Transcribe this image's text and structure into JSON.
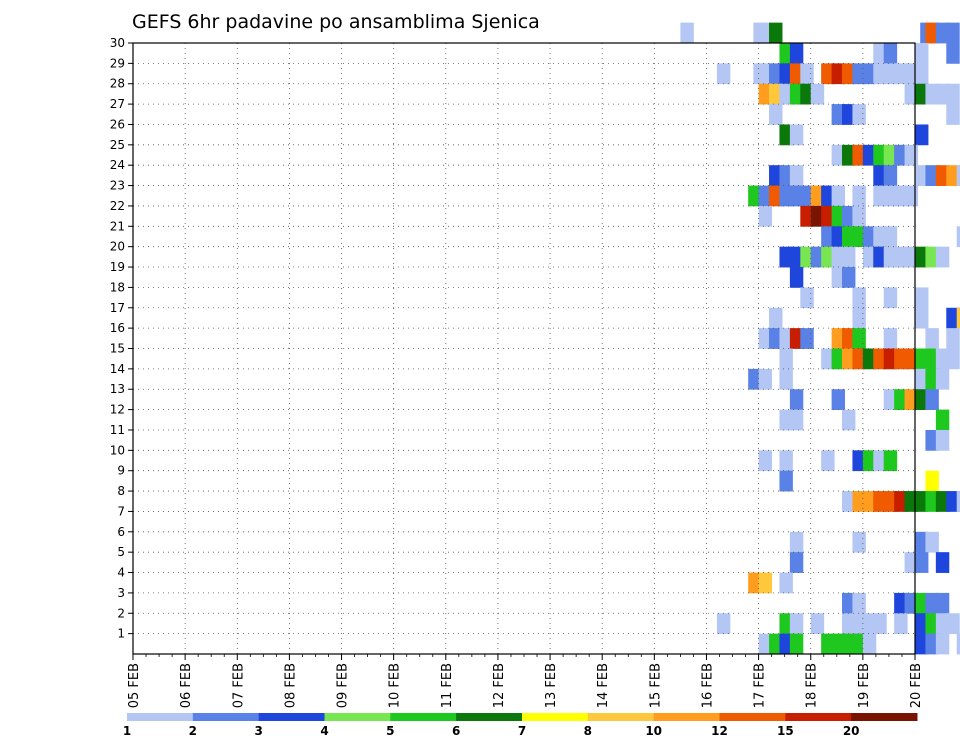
{
  "chart_data": {
    "type": "heatmap",
    "title": "GEFS 6hr padavine po ansamblima Sjenica",
    "xlabel": "",
    "ylabel": "",
    "x_ticks": [
      "05 FEB",
      "06 FEB",
      "07 FEB",
      "08 FEB",
      "09 FEB",
      "10 FEB",
      "11 FEB",
      "12 FEB",
      "13 FEB",
      "14 FEB",
      "15 FEB",
      "16 FEB",
      "17 FEB",
      "18 FEB",
      "19 FEB",
      "20 FEB"
    ],
    "y_ticks": [
      "1",
      "2",
      "3",
      "4",
      "5",
      "6",
      "7",
      "8",
      "9",
      "10",
      "11",
      "12",
      "13",
      "14",
      "15",
      "16",
      "17",
      "18",
      "19",
      "20",
      "21",
      "22",
      "23",
      "24",
      "25",
      "26",
      "27",
      "28",
      "29",
      "30"
    ],
    "ylim": [
      0,
      30
    ],
    "x_range_days": [
      0,
      15
    ],
    "grid": true,
    "color_scale": {
      "levels": [
        "1",
        "2",
        "3",
        "4",
        "5",
        "6",
        "7",
        "8",
        "10",
        "12",
        "15",
        "20"
      ],
      "colors": [
        "#b4c6f4",
        "#5a82e6",
        "#1e46dc",
        "#78e650",
        "#1ec81e",
        "#0a780a",
        "#ffff00",
        "#ffc83c",
        "#ff9e1e",
        "#f05a00",
        "#c81e00",
        "#781400"
      ]
    },
    "cells": [
      [
        30,
        15.5,
        1
      ],
      [
        30,
        16.9,
        1
      ],
      [
        30,
        17,
        1
      ],
      [
        30,
        17.2,
        6
      ],
      [
        30,
        20.1,
        2
      ],
      [
        30,
        20.2,
        10
      ],
      [
        30,
        20.4,
        2
      ],
      [
        30,
        20.6,
        2
      ],
      [
        29,
        17.4,
        5
      ],
      [
        29,
        17.6,
        3
      ],
      [
        29,
        19.2,
        1
      ],
      [
        29,
        19.4,
        2
      ],
      [
        29,
        20.0,
        1
      ],
      [
        29,
        20.6,
        2
      ],
      [
        28,
        16.2,
        1
      ],
      [
        28,
        16.9,
        1
      ],
      [
        28,
        17,
        1
      ],
      [
        28,
        17.2,
        2
      ],
      [
        28,
        17.4,
        3
      ],
      [
        28,
        17.6,
        10
      ],
      [
        28,
        17.8,
        1
      ],
      [
        28,
        18.2,
        10
      ],
      [
        28,
        18.4,
        11
      ],
      [
        28,
        18.6,
        10
      ],
      [
        28,
        18.8,
        2
      ],
      [
        28,
        19,
        2
      ],
      [
        28,
        19.2,
        1
      ],
      [
        28,
        19.4,
        1
      ],
      [
        28,
        19.6,
        1
      ],
      [
        28,
        19.8,
        1
      ],
      [
        28,
        20.0,
        1
      ],
      [
        27,
        17,
        9
      ],
      [
        27,
        17.2,
        8
      ],
      [
        27,
        17.4,
        1
      ],
      [
        27,
        17.6,
        5
      ],
      [
        27,
        17.8,
        6
      ],
      [
        27,
        18,
        1
      ],
      [
        27,
        19.8,
        1
      ],
      [
        27,
        20.0,
        6
      ],
      [
        27,
        20.2,
        1
      ],
      [
        27,
        20.4,
        1
      ],
      [
        27,
        20.6,
        1
      ],
      [
        26,
        17.2,
        1
      ],
      [
        26,
        18.4,
        2
      ],
      [
        26,
        18.6,
        3
      ],
      [
        26,
        18.8,
        1
      ],
      [
        26,
        20.6,
        1
      ],
      [
        26,
        21.4,
        2
      ],
      [
        26,
        21.6,
        2
      ],
      [
        26,
        21.8,
        8
      ],
      [
        25,
        17.4,
        6
      ],
      [
        25,
        17.6,
        1
      ],
      [
        25,
        20.0,
        3
      ],
      [
        25,
        21.6,
        1
      ],
      [
        24,
        18.4,
        1
      ],
      [
        24,
        18.6,
        6
      ],
      [
        24,
        18.8,
        10
      ],
      [
        24,
        19.0,
        3
      ],
      [
        24,
        19.2,
        5
      ],
      [
        24,
        19.4,
        4
      ],
      [
        24,
        19.6,
        2
      ],
      [
        24,
        19.8,
        1
      ],
      [
        23,
        17.2,
        3
      ],
      [
        23,
        17.4,
        2
      ],
      [
        23,
        17.6,
        1
      ],
      [
        23,
        19.2,
        3
      ],
      [
        23,
        19.4,
        2
      ],
      [
        23,
        20.0,
        1
      ],
      [
        23,
        20.2,
        2
      ],
      [
        23,
        20.4,
        10
      ],
      [
        23,
        20.6,
        9
      ],
      [
        23,
        20.8,
        1
      ],
      [
        22,
        16.8,
        5
      ],
      [
        22,
        17,
        2
      ],
      [
        22,
        17.2,
        10
      ],
      [
        22,
        17.4,
        2
      ],
      [
        22,
        17.6,
        2
      ],
      [
        22,
        17.8,
        2
      ],
      [
        22,
        18,
        9
      ],
      [
        22,
        18.2,
        3
      ],
      [
        22,
        18.4,
        1
      ],
      [
        22,
        18.8,
        1
      ],
      [
        22,
        19.2,
        1
      ],
      [
        22,
        19.4,
        1
      ],
      [
        22,
        19.6,
        1
      ],
      [
        22,
        19.8,
        1
      ],
      [
        21,
        17,
        1
      ],
      [
        21,
        17.8,
        11
      ],
      [
        21,
        18,
        12
      ],
      [
        21,
        18.2,
        11
      ],
      [
        21,
        18.4,
        5
      ],
      [
        21,
        18.6,
        2
      ],
      [
        21,
        18.8,
        1
      ],
      [
        21,
        21.0,
        1
      ],
      [
        21,
        21.2,
        2
      ],
      [
        20,
        18.2,
        2
      ],
      [
        20,
        18.4,
        3
      ],
      [
        20,
        18.6,
        5
      ],
      [
        20,
        18.8,
        5
      ],
      [
        20,
        19.0,
        2
      ],
      [
        20,
        19.2,
        1
      ],
      [
        20,
        19.4,
        1
      ],
      [
        20,
        20.8,
        1
      ],
      [
        19,
        17.4,
        3
      ],
      [
        19,
        17.6,
        3
      ],
      [
        19,
        17.8,
        4
      ],
      [
        19,
        18.0,
        2
      ],
      [
        19,
        18.2,
        4
      ],
      [
        19,
        18.4,
        1
      ],
      [
        19,
        18.6,
        1
      ],
      [
        19,
        19.0,
        1
      ],
      [
        19,
        19.2,
        3
      ],
      [
        19,
        19.4,
        1
      ],
      [
        19,
        19.6,
        1
      ],
      [
        19,
        19.8,
        1
      ],
      [
        19,
        20.0,
        6
      ],
      [
        19,
        20.2,
        4
      ],
      [
        19,
        20.4,
        1
      ],
      [
        19,
        21.0,
        1
      ],
      [
        18,
        17.6,
        3
      ],
      [
        18,
        18.4,
        1
      ],
      [
        18,
        18.6,
        2
      ],
      [
        17,
        17.8,
        1
      ],
      [
        17,
        18.8,
        1
      ],
      [
        17,
        19.4,
        1
      ],
      [
        17,
        20.0,
        1
      ],
      [
        16,
        17.2,
        1
      ],
      [
        16,
        18.8,
        1
      ],
      [
        16,
        20.0,
        1
      ],
      [
        16,
        20.6,
        3
      ],
      [
        16,
        20.8,
        8
      ],
      [
        16,
        21.0,
        6
      ],
      [
        16,
        21.2,
        1
      ],
      [
        16,
        21.6,
        1
      ],
      [
        15,
        17,
        1
      ],
      [
        15,
        17.2,
        2
      ],
      [
        15,
        17.4,
        1
      ],
      [
        15,
        17.6,
        11
      ],
      [
        15,
        17.8,
        2
      ],
      [
        15,
        18.4,
        9
      ],
      [
        15,
        18.6,
        10
      ],
      [
        15,
        18.8,
        5
      ],
      [
        15,
        19.4,
        1
      ],
      [
        15,
        20.2,
        1
      ],
      [
        15,
        20.6,
        1
      ],
      [
        15,
        21.6,
        1
      ],
      [
        15,
        21.8,
        2
      ],
      [
        14,
        17.4,
        1
      ],
      [
        14,
        18.2,
        1
      ],
      [
        14,
        18.4,
        5
      ],
      [
        14,
        18.6,
        9
      ],
      [
        14,
        18.8,
        10
      ],
      [
        14,
        19.0,
        6
      ],
      [
        14,
        19.2,
        10
      ],
      [
        14,
        19.4,
        11
      ],
      [
        14,
        19.6,
        10
      ],
      [
        14,
        19.8,
        10
      ],
      [
        14,
        20.0,
        5
      ],
      [
        14,
        20.2,
        5
      ],
      [
        14,
        20.4,
        1
      ],
      [
        14,
        20.6,
        1
      ],
      [
        14,
        21.8,
        5
      ],
      [
        14,
        22.0,
        5
      ],
      [
        13,
        16.8,
        2
      ],
      [
        13,
        17,
        1
      ],
      [
        13,
        17.4,
        1
      ],
      [
        13,
        20.0,
        1
      ],
      [
        13,
        20.2,
        5
      ],
      [
        13,
        20.4,
        1
      ],
      [
        12,
        17.6,
        2
      ],
      [
        12,
        18.4,
        2
      ],
      [
        12,
        19.4,
        1
      ],
      [
        12,
        19.6,
        5
      ],
      [
        12,
        19.8,
        9
      ],
      [
        12,
        20.0,
        6
      ],
      [
        12,
        20.2,
        2
      ],
      [
        11,
        17.4,
        1
      ],
      [
        11,
        17.6,
        1
      ],
      [
        11,
        18.6,
        1
      ],
      [
        11,
        20.4,
        5
      ],
      [
        10,
        20.2,
        2
      ],
      [
        10,
        20.4,
        1
      ],
      [
        9,
        17,
        1
      ],
      [
        9,
        17.4,
        1
      ],
      [
        9,
        18.2,
        1
      ],
      [
        9,
        18.8,
        3
      ],
      [
        9,
        19.0,
        5
      ],
      [
        9,
        19.2,
        1
      ],
      [
        9,
        19.4,
        5
      ],
      [
        9,
        21.8,
        9
      ],
      [
        8,
        17.4,
        2
      ],
      [
        8,
        20.2,
        7
      ],
      [
        8,
        21.8,
        2
      ],
      [
        7,
        18.6,
        1
      ],
      [
        7,
        18.8,
        9
      ],
      [
        7,
        19.0,
        9
      ],
      [
        7,
        19.2,
        10
      ],
      [
        7,
        19.4,
        10
      ],
      [
        7,
        19.6,
        11
      ],
      [
        7,
        19.8,
        6
      ],
      [
        7,
        20.0,
        6
      ],
      [
        7,
        20.2,
        5
      ],
      [
        7,
        20.4,
        6
      ],
      [
        7,
        20.6,
        3
      ],
      [
        7,
        20.8,
        1
      ],
      [
        7,
        21.0,
        5
      ],
      [
        7,
        21.2,
        3
      ],
      [
        7,
        21.4,
        1
      ],
      [
        5,
        17.6,
        1
      ],
      [
        5,
        18.8,
        1
      ],
      [
        5,
        20.0,
        2
      ],
      [
        5,
        20.2,
        1
      ],
      [
        4,
        17.6,
        2
      ],
      [
        4,
        19.8,
        1
      ],
      [
        4,
        20.0,
        2
      ],
      [
        4,
        20.4,
        3
      ],
      [
        3,
        16.8,
        9
      ],
      [
        3,
        17,
        8
      ],
      [
        3,
        17.4,
        1
      ],
      [
        2,
        18.6,
        2
      ],
      [
        2,
        18.8,
        1
      ],
      [
        2,
        19.6,
        3
      ],
      [
        2,
        19.8,
        2
      ],
      [
        2,
        20.0,
        5
      ],
      [
        2,
        20.2,
        2
      ],
      [
        2,
        20.4,
        2
      ],
      [
        1,
        16.2,
        1
      ],
      [
        1,
        17.4,
        5
      ],
      [
        1,
        17.6,
        1
      ],
      [
        1,
        18.0,
        1
      ],
      [
        1,
        18.6,
        1
      ],
      [
        1,
        18.8,
        1
      ],
      [
        1,
        19.0,
        1
      ],
      [
        1,
        19.2,
        1
      ],
      [
        1,
        19.6,
        1
      ],
      [
        1,
        20.0,
        3
      ],
      [
        1,
        20.2,
        5
      ],
      [
        1,
        20.4,
        1
      ],
      [
        1,
        20.6,
        1
      ],
      [
        0,
        17.0,
        1
      ],
      [
        0,
        17.2,
        5
      ],
      [
        0,
        17.4,
        3
      ],
      [
        0,
        17.6,
        5
      ],
      [
        0,
        18.2,
        5
      ],
      [
        0,
        18.4,
        5
      ],
      [
        0,
        18.6,
        5
      ],
      [
        0,
        18.8,
        5
      ],
      [
        0,
        19.0,
        1
      ],
      [
        0,
        20.0,
        3
      ],
      [
        0,
        20.2,
        2
      ],
      [
        0,
        20.4,
        1
      ],
      [
        0,
        20.8,
        1
      ]
    ]
  }
}
